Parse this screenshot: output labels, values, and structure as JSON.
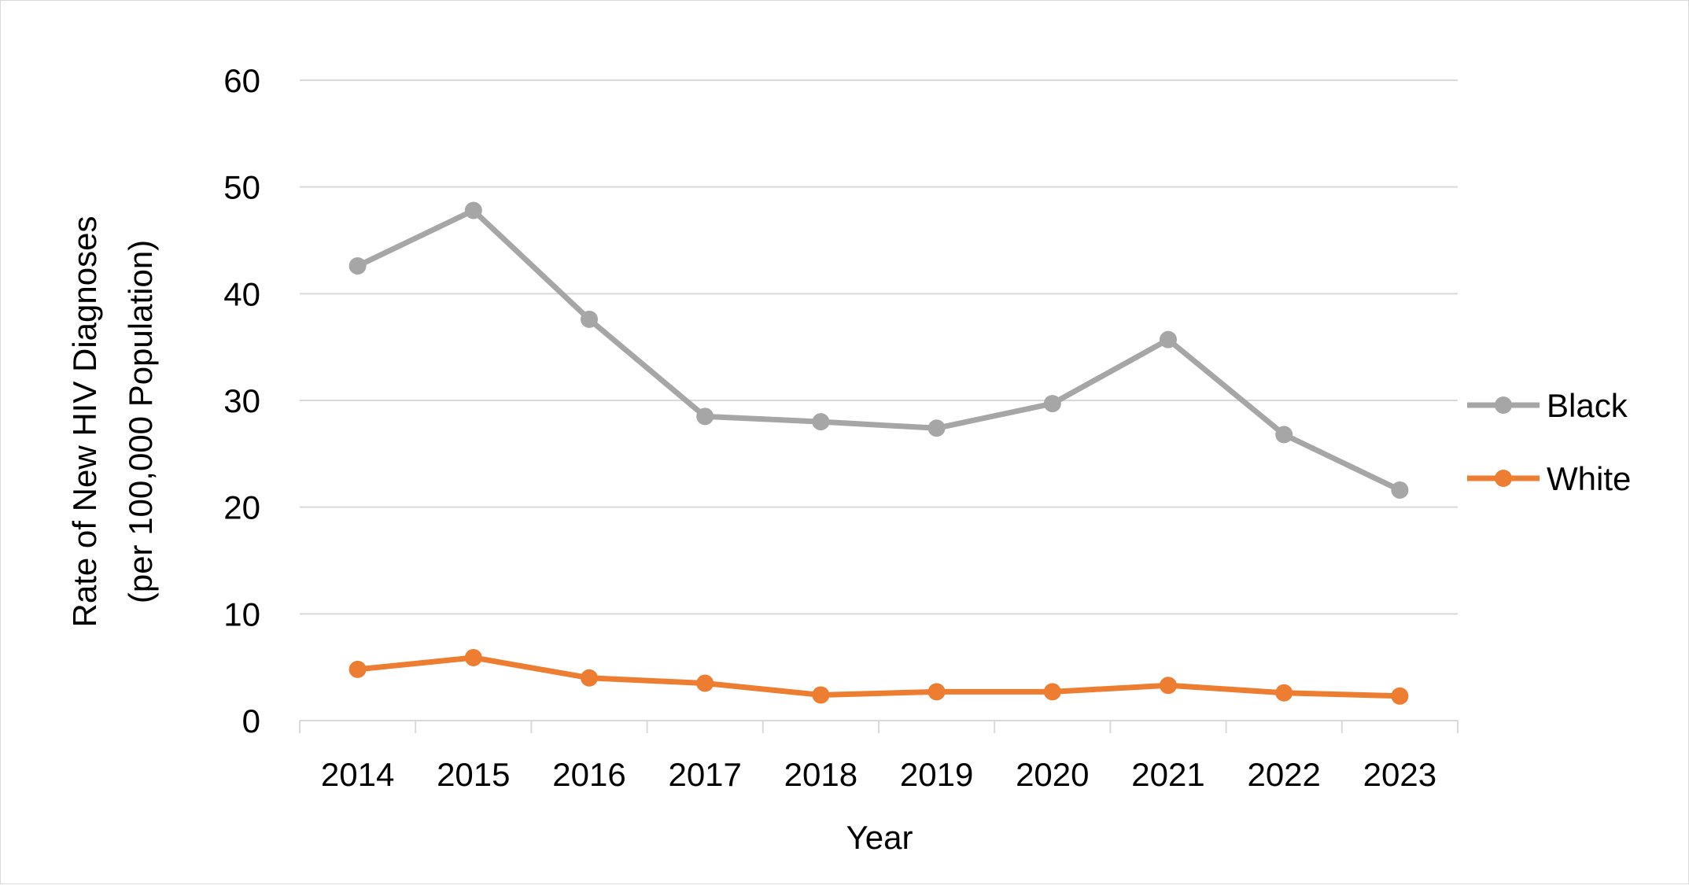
{
  "chart_data": {
    "type": "line",
    "title": "",
    "xlabel": "Year",
    "ylabel": "Rate of New HIV Diagnoses (per 100,000 Population)",
    "ylabel_lines": [
      "Rate of New HIV Diagnoses",
      "(per 100,000 Population)"
    ],
    "categories": [
      "2014",
      "2015",
      "2016",
      "2017",
      "2018",
      "2019",
      "2020",
      "2021",
      "2022",
      "2023"
    ],
    "ylim": [
      0,
      60
    ],
    "yticks": [
      "0",
      "10",
      "20",
      "30",
      "40",
      "50",
      "60"
    ],
    "grid": true,
    "legend": "right",
    "series": [
      {
        "name": "Black",
        "color": "#a6a6a6",
        "values": [
          42.6,
          47.8,
          37.6,
          28.5,
          28.0,
          27.4,
          29.7,
          35.7,
          26.8,
          21.6
        ]
      },
      {
        "name": "White",
        "color": "#ed7d31",
        "values": [
          4.8,
          5.9,
          4.0,
          3.5,
          2.4,
          2.7,
          2.7,
          3.3,
          2.6,
          2.3
        ]
      }
    ]
  }
}
